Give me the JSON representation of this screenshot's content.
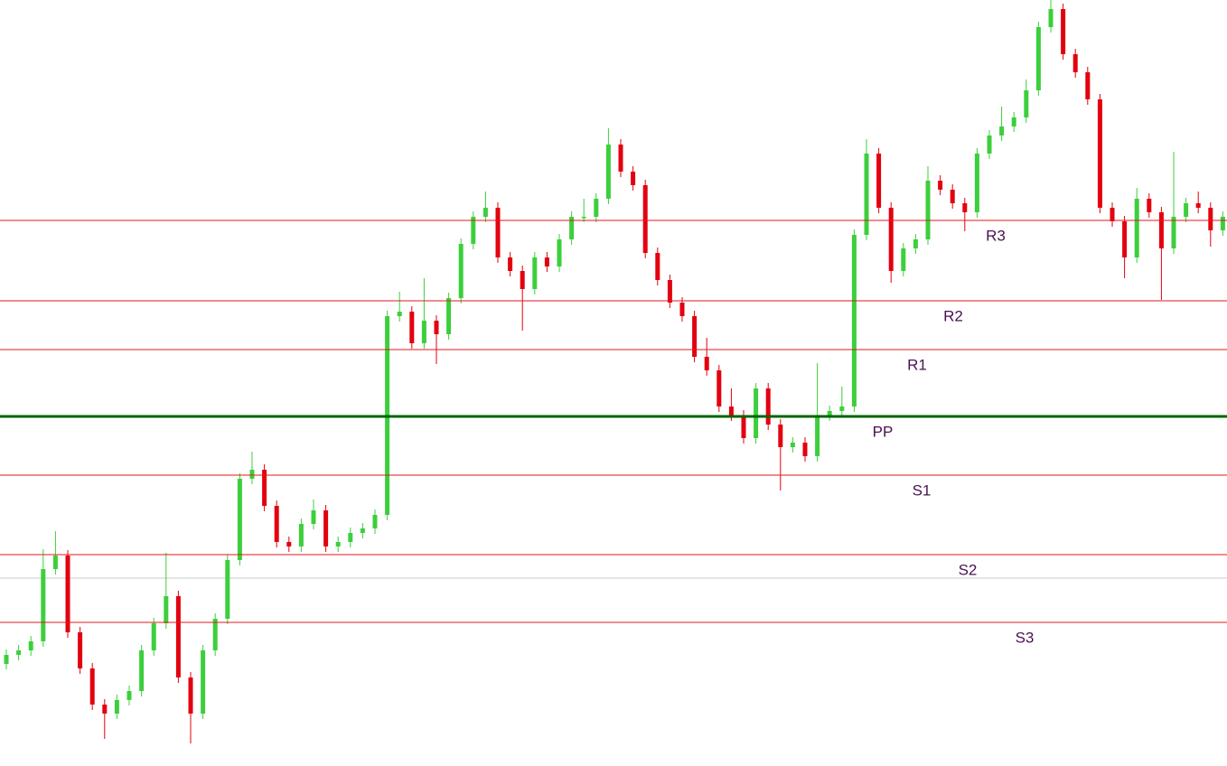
{
  "chart_data": {
    "type": "candlestick",
    "ylim": [
      0,
      848
    ],
    "up_color": "#3ccf3c",
    "down_color": "#e3000f",
    "level_color": "#e0181b",
    "pivot_color": "#006400",
    "reference_line": {
      "value": 208,
      "color": "#c8c8c8"
    },
    "levels": [
      {
        "label": "R3",
        "value": 604
      },
      {
        "label": "R2",
        "value": 515
      },
      {
        "label": "R1",
        "value": 461
      },
      {
        "label": "PP",
        "value": 387
      },
      {
        "label": "S1",
        "value": 322
      },
      {
        "label": "S2",
        "value": 234
      },
      {
        "label": "S3",
        "value": 159
      }
    ],
    "open": [
      113,
      123,
      128,
      138,
      218,
      233,
      148,
      108,
      68,
      58,
      73,
      83,
      128,
      158,
      188,
      98,
      58,
      128,
      163,
      228,
      318,
      328,
      288,
      248,
      243,
      268,
      283,
      243,
      248,
      258,
      263,
      278,
      498,
      503,
      468,
      493,
      478,
      518,
      578,
      608,
      618,
      563,
      548,
      528,
      563,
      553,
      583,
      608,
      608,
      628,
      688,
      658,
      643,
      568,
      538,
      513,
      498,
      453,
      438,
      398,
      388,
      363,
      418,
      378,
      353,
      358,
      343,
      388,
      393,
      398,
      588,
      678,
      618,
      548,
      573,
      583,
      648,
      638,
      623,
      613,
      678,
      698,
      708,
      718,
      748,
      818,
      838,
      788,
      768,
      738,
      618,
      603,
      563,
      628,
      613,
      573,
      608,
      623,
      618,
      593
    ],
    "high": [
      129,
      134,
      144,
      240,
      260,
      239,
      154,
      114,
      74,
      79,
      89,
      134,
      164,
      236,
      194,
      104,
      134,
      169,
      234,
      324,
      348,
      334,
      294,
      254,
      274,
      295,
      289,
      254,
      264,
      269,
      284,
      504,
      525,
      509,
      540,
      499,
      524,
      584,
      614,
      636,
      624,
      569,
      554,
      569,
      569,
      589,
      614,
      628,
      634,
      706,
      694,
      664,
      649,
      574,
      544,
      519,
      504,
      474,
      444,
      418,
      394,
      424,
      424,
      384,
      364,
      364,
      446,
      399,
      420,
      594,
      694,
      684,
      624,
      579,
      589,
      664,
      654,
      644,
      629,
      684,
      704,
      730,
      724,
      760,
      824,
      848,
      844,
      794,
      774,
      744,
      624,
      609,
      640,
      634,
      619,
      680,
      629,
      636,
      624,
      614
    ],
    "low": [
      107,
      117,
      122,
      132,
      212,
      142,
      102,
      62,
      30,
      52,
      67,
      77,
      122,
      152,
      92,
      25,
      52,
      122,
      157,
      222,
      312,
      282,
      242,
      237,
      237,
      262,
      237,
      237,
      242,
      252,
      257,
      272,
      492,
      462,
      462,
      445,
      472,
      512,
      572,
      602,
      557,
      542,
      482,
      522,
      547,
      547,
      577,
      602,
      602,
      622,
      652,
      637,
      562,
      532,
      507,
      492,
      447,
      432,
      392,
      382,
      357,
      357,
      372,
      305,
      347,
      337,
      337,
      382,
      387,
      392,
      582,
      612,
      535,
      542,
      567,
      577,
      632,
      617,
      592,
      607,
      672,
      692,
      702,
      712,
      742,
      812,
      782,
      762,
      732,
      612,
      597,
      540,
      557,
      607,
      516,
      567,
      602,
      612,
      575,
      587
    ],
    "close": [
      123,
      128,
      138,
      218,
      233,
      148,
      108,
      68,
      58,
      73,
      83,
      128,
      158,
      188,
      98,
      58,
      128,
      163,
      228,
      318,
      328,
      288,
      248,
      243,
      268,
      283,
      243,
      248,
      258,
      263,
      278,
      498,
      503,
      468,
      493,
      478,
      518,
      578,
      608,
      618,
      563,
      548,
      528,
      563,
      553,
      583,
      608,
      608,
      628,
      688,
      658,
      643,
      568,
      538,
      513,
      498,
      453,
      438,
      398,
      388,
      363,
      418,
      378,
      353,
      358,
      343,
      388,
      393,
      398,
      588,
      678,
      618,
      548,
      573,
      583,
      648,
      638,
      623,
      613,
      678,
      698,
      708,
      718,
      748,
      818,
      838,
      788,
      768,
      738,
      618,
      603,
      563,
      628,
      613,
      573,
      608,
      623,
      618,
      593,
      608
    ]
  }
}
